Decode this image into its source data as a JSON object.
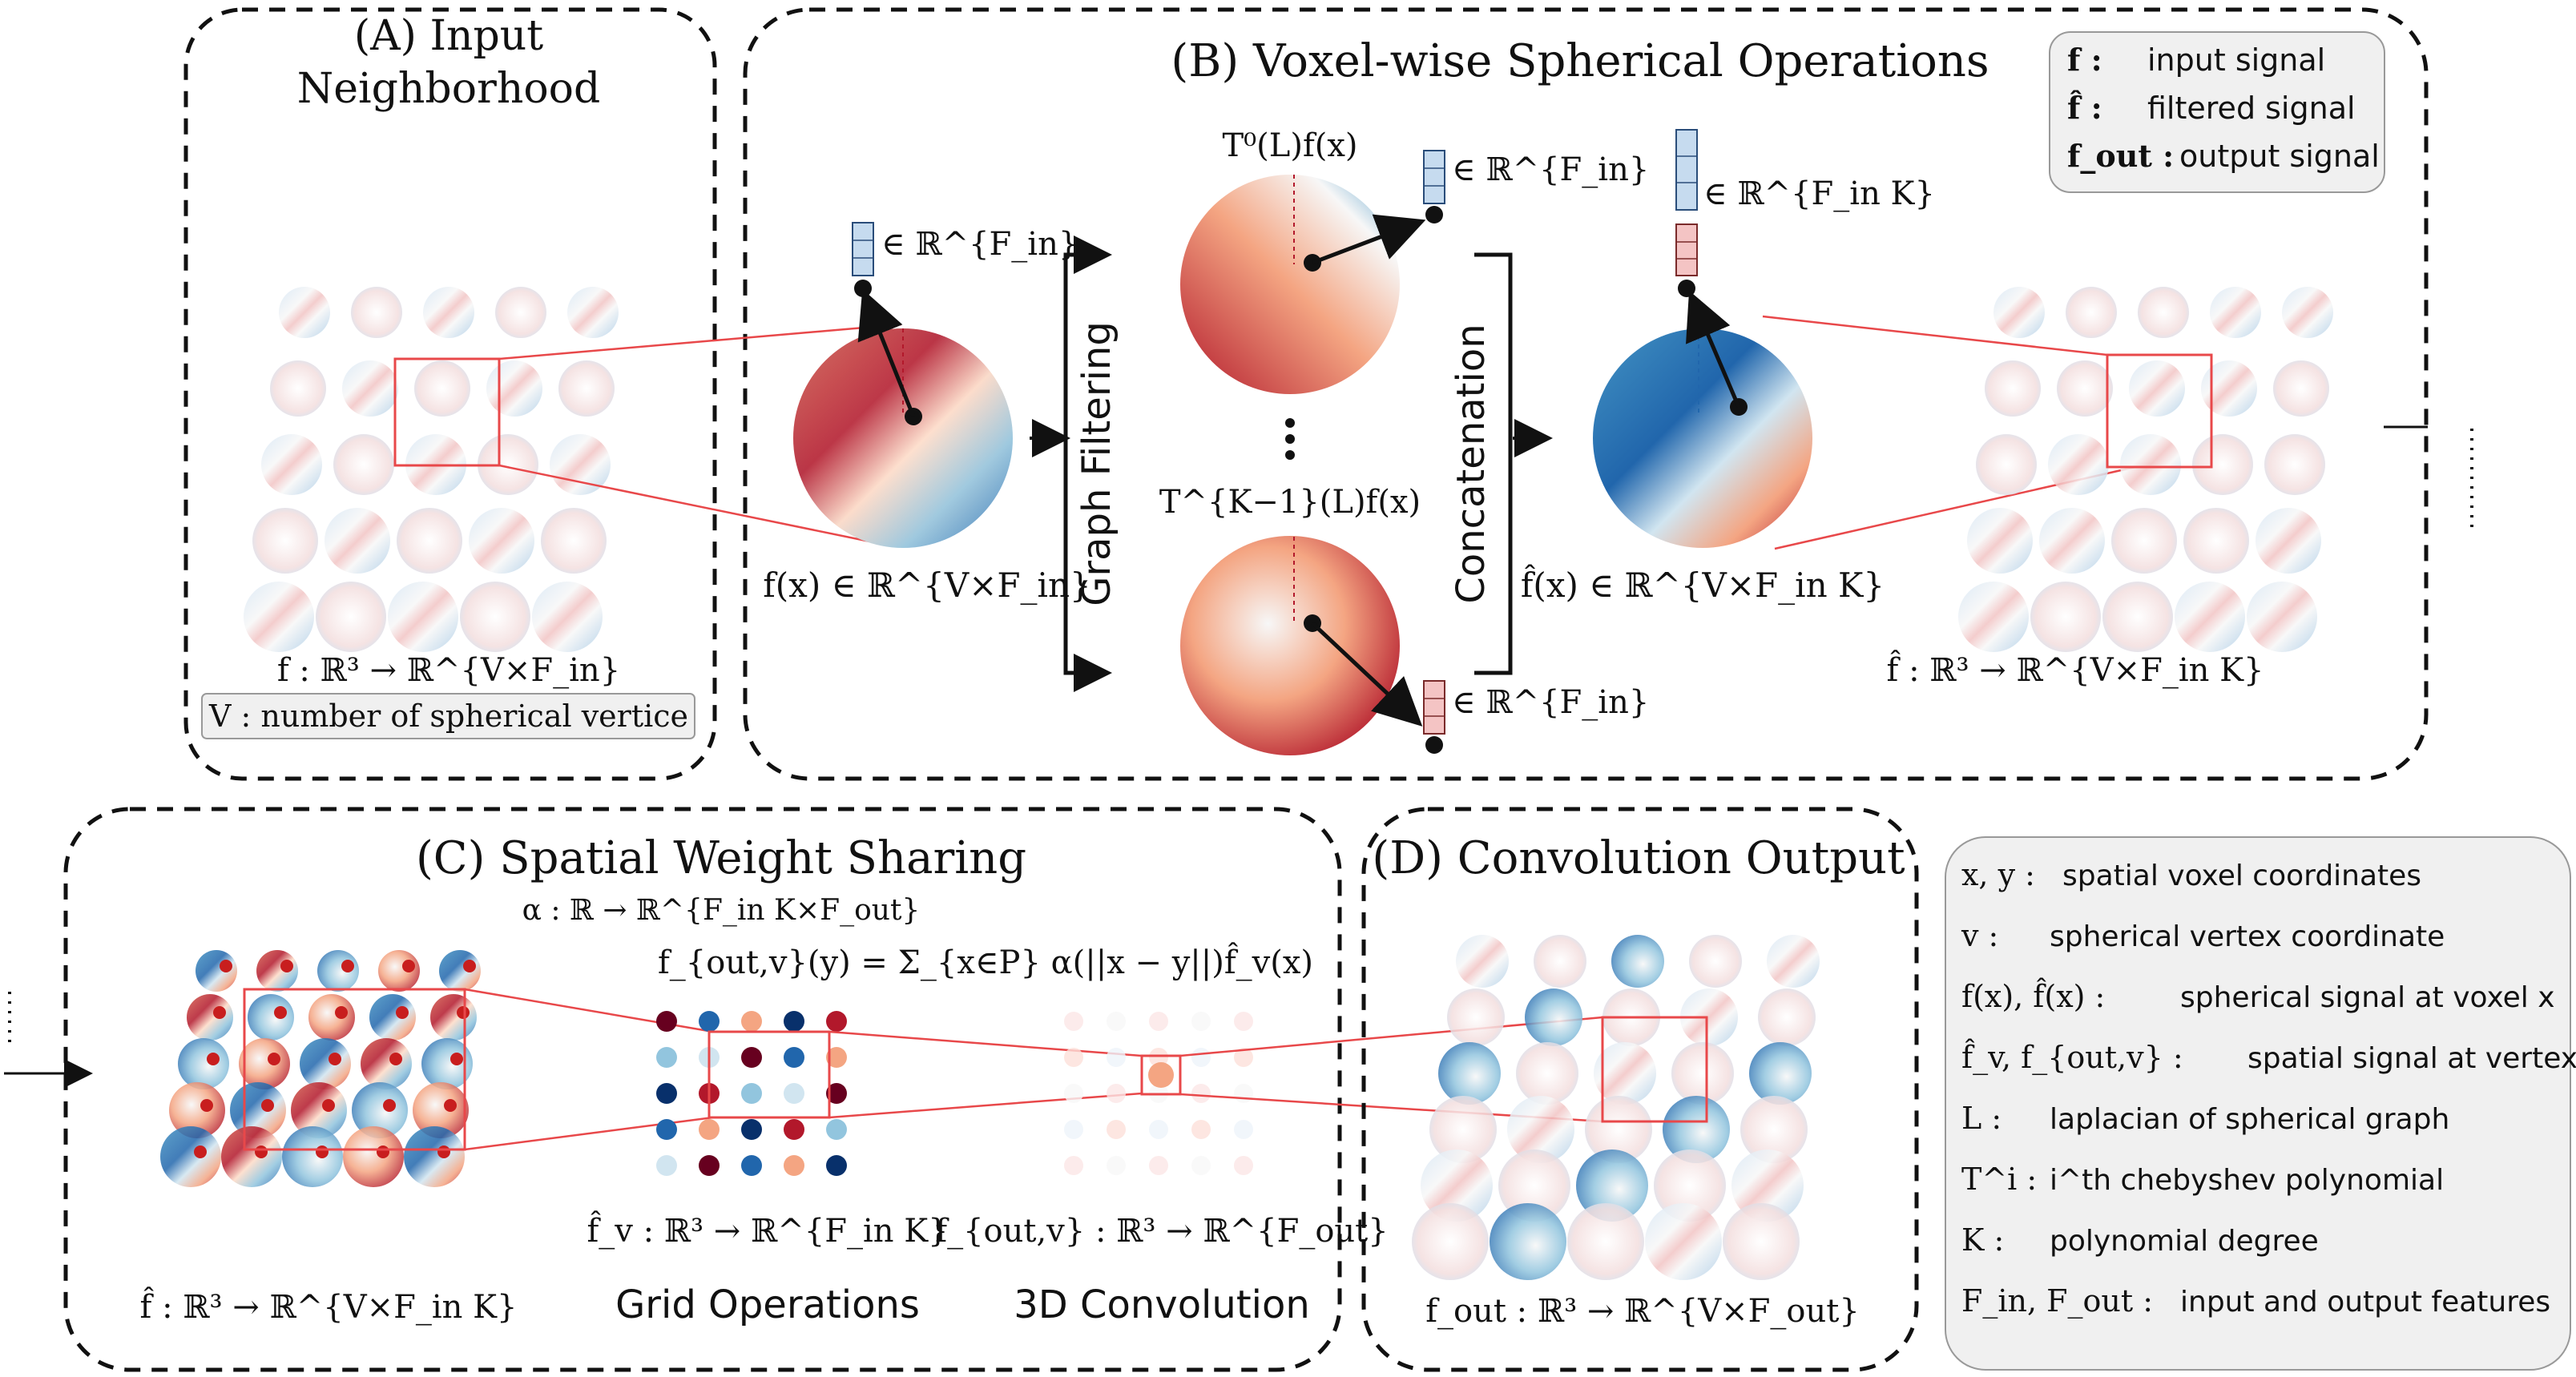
{
  "panel_a": {
    "title_line1": "(A) Input",
    "title_line2": "Neighborhood",
    "map_label": "f : ℝ³ → ℝ^{V×F_in}",
    "note": "V : number of spherical vertice"
  },
  "panel_b": {
    "title": "(B) Voxel-wise Spherical Operations",
    "input_label": "f(x) ∈ ℝ^{V×F_in}",
    "input_vec": "∈ ℝ^{F_in}",
    "graph_filtering": "Graph Filtering",
    "t0_label": "T⁰(L)f(x)",
    "t0_vec": "∈ ℝ^{F_in}",
    "tk_label": "T^{K−1}(L)f(x)",
    "tk_vec": "∈ ℝ^{F_in}",
    "concatenation": "Concatenation",
    "concat_vec": "∈ ℝ^{F_in K}",
    "filtered_label": "f̂(x) ∈ ℝ^{V×F_in K}",
    "output_map": "f̂ : ℝ³ → ℝ^{V×F_in K}"
  },
  "legend_b": [
    {
      "sym": "f :",
      "text": "input signal"
    },
    {
      "sym": "f̂ :",
      "text": "filtered signal"
    },
    {
      "sym": "f_out :",
      "text": "output signal"
    }
  ],
  "panel_c": {
    "title": "(C) Spatial Weight Sharing",
    "alpha": "α : ℝ → ℝ^{F_in K×F_out}",
    "formula": "f_{out,v}(y) = Σ_{x∈P} α(||x − y||)f̂_v(x)",
    "map_left": "f̂ : ℝ³ → ℝ^{V×F_in K}",
    "map_mid": "f̂_v : ℝ³ → ℝ^{F_in K}",
    "map_right": "f_{out,v} : ℝ³ → ℝ^{F_out}",
    "caption_mid": "Grid Operations",
    "caption_right": "3D Convolution"
  },
  "panel_d": {
    "title": "(D) Convolution Output",
    "map": "f_out : ℝ³ → ℝ^{V×F_out}"
  },
  "legend_d": [
    {
      "sym": "x, y :",
      "text": "spatial voxel coordinates"
    },
    {
      "sym": "v :",
      "text": "spherical vertex coordinate"
    },
    {
      "sym": "f(x), f̂(x) :",
      "text": "spherical signal at voxel x"
    },
    {
      "sym": "f̂_v, f_{out,v} :",
      "text": "spatial signal at vertex v"
    },
    {
      "sym": "L :",
      "text": "laplacian of spherical graph"
    },
    {
      "sym": "T^i :",
      "text": "i^th chebyshev polynomial"
    },
    {
      "sym": "K :",
      "text": "polynomial degree"
    },
    {
      "sym": "F_in, F_out :",
      "text": "input and output features"
    }
  ],
  "colors": {
    "red": "#b2182b",
    "blue": "#2166ac",
    "zoom": "#e8484a",
    "legend_bg": "#f0f0f0"
  }
}
